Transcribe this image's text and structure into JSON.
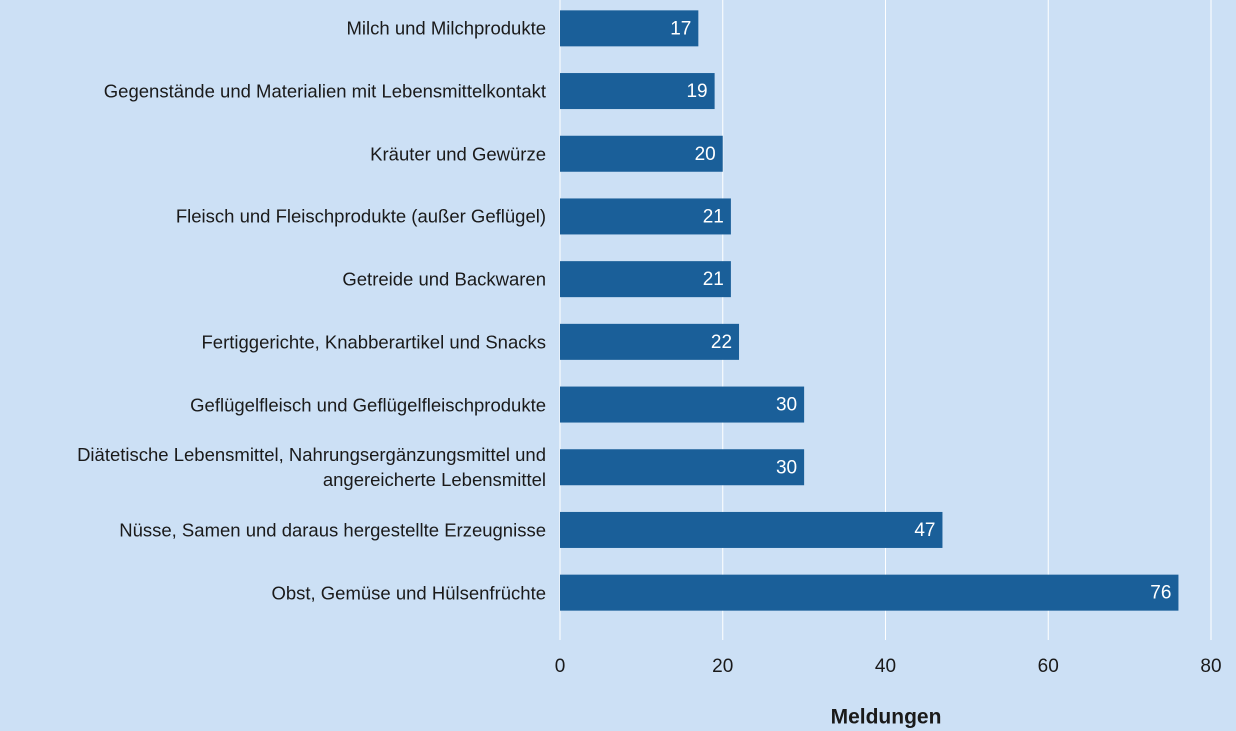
{
  "chart_data": {
    "type": "bar",
    "orientation": "horizontal",
    "categories": [
      "Milch und Milchprodukte",
      "Gegenstände und Materialien mit Lebensmittelkontakt",
      "Kräuter und Gewürze",
      "Fleisch und Fleischprodukte (außer Geflügel)",
      "Getreide und Backwaren",
      "Fertiggerichte, Knabberartikel und Snacks",
      "Geflügelfleisch und Geflügelfleischprodukte",
      "Diätetische Lebensmittel, Nahrungsergänzungsmittel und angereicherte Lebensmittel",
      "Nüsse, Samen und daraus hergestellte Erzeugnisse",
      "Obst, Gemüse und Hülsenfrüchte"
    ],
    "values": [
      17,
      19,
      20,
      21,
      21,
      22,
      30,
      30,
      47,
      76
    ],
    "color": "#1a5f99",
    "xlabel": "Meldungen",
    "xlim": [
      0,
      80
    ],
    "xticks": [
      0,
      20,
      40,
      60,
      80
    ],
    "grid": true
  }
}
